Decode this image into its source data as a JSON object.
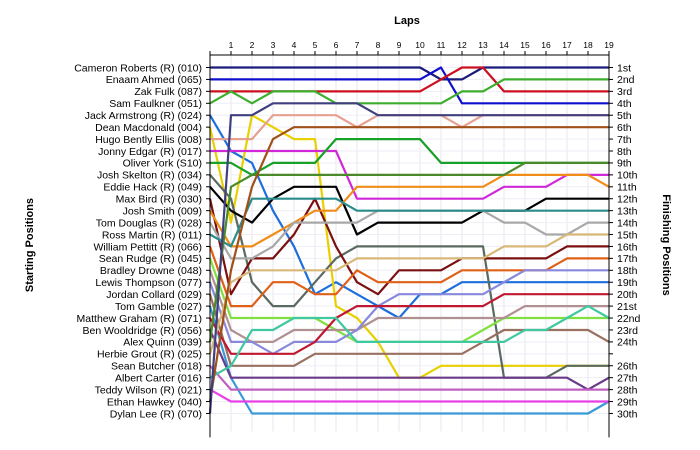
{
  "chart_data": {
    "type": "line",
    "title": "Laps",
    "xlabel_left": "Starting Positions",
    "xlabel_right": "Finishing Positions",
    "laps": [
      1,
      2,
      3,
      4,
      5,
      6,
      7,
      8,
      9,
      10,
      11,
      12,
      13,
      14,
      15,
      16,
      17,
      18,
      19
    ],
    "start_labels": [
      "Cameron Roberts (R) (010)",
      "Enaam Ahmed (065)",
      "Zak Fulk (087)",
      "Sam Faulkner (051)",
      "Jack Armstrong (R) (024)",
      "Dean Macdonald (004)",
      "Hugo Bently Ellis (008)",
      "Jonny Edgar (R) (017)",
      "Oliver York (S10)",
      "Josh Skelton (R) (034)",
      "Eddie Hack (R) (049)",
      "Max Bird   (R) (030)",
      "Josh Smith (009)",
      "Tom Douglas   (R) (028)",
      "Ross Martin (R) (011)",
      "William Pettitt (R) (066)",
      "Sean Rudge (R) (045)",
      "Bradley Drowne (048)",
      "Lewis Thompson (077)",
      "Jordan Collard (029)",
      "Tom Gamble (027)",
      "Matthew Graham (R) (071)",
      "Ben Wooldridge (R) (056)",
      "Alex Quinn (039)",
      "Herbie Grout (R) (025)",
      "Sean Butcher (018)",
      "Albert Carter (016)",
      "Teddy Wilson (R) (021)",
      "Ethan Hawkey (040)",
      "Dylan Lee (R) (070)"
    ],
    "finish_labels": [
      "1st",
      "2nd",
      "3rd",
      "4th",
      "5th",
      "6th",
      "7th",
      "8th",
      "9th",
      "10th",
      "11th",
      "12th",
      "13th",
      "14th",
      "15th",
      "16th",
      "17th",
      "18th",
      "19th",
      "20th",
      "21st",
      "22nd",
      "23rd",
      "24th",
      "",
      "26th",
      "27th",
      "28th",
      "29th",
      "30th"
    ],
    "series": [
      {
        "color": "#1a1a7a",
        "values": [
          1,
          1,
          1,
          1,
          1,
          1,
          1,
          1,
          1,
          1,
          1,
          2,
          2,
          1,
          1,
          1,
          1,
          1,
          1,
          1
        ]
      },
      {
        "color": "#1010cc",
        "values": [
          2,
          2,
          2,
          2,
          2,
          2,
          2,
          2,
          2,
          2,
          2,
          1,
          4,
          4,
          4,
          4,
          4,
          4,
          4,
          4
        ]
      },
      {
        "color": "#cc1020",
        "values": [
          3,
          3,
          3,
          3,
          3,
          3,
          3,
          3,
          3,
          3,
          3,
          2,
          1,
          1,
          3,
          3,
          3,
          3,
          3,
          3
        ]
      },
      {
        "color": "#3cae2c",
        "values": [
          4,
          3,
          4,
          3,
          3,
          3,
          4,
          4,
          4,
          4,
          4,
          4,
          3,
          3,
          2,
          2,
          2,
          2,
          2,
          2
        ]
      },
      {
        "color": "#1e6edc",
        "values": [
          5,
          8,
          9,
          13,
          16,
          20,
          19,
          20,
          21,
          22,
          20,
          20,
          19,
          19,
          19,
          19,
          19,
          19,
          19,
          19
        ]
      },
      {
        "color": "#e8d000",
        "values": [
          6,
          14,
          5,
          6,
          7,
          7,
          21,
          22,
          24,
          27,
          27,
          26,
          26,
          26,
          26,
          26,
          26,
          26,
          26,
          26
        ]
      },
      {
        "color": "#e7a090",
        "values": [
          7,
          7,
          7,
          5,
          5,
          5,
          5,
          6,
          5,
          5,
          5,
          5,
          6,
          5,
          5,
          5,
          5,
          5,
          5,
          5
        ]
      },
      {
        "color": "#d028d8",
        "values": [
          8,
          8,
          8,
          8,
          8,
          8,
          8,
          12,
          12,
          12,
          12,
          12,
          12,
          12,
          11,
          11,
          11,
          10,
          10,
          10
        ]
      },
      {
        "color": "#18a028",
        "values": [
          9,
          9,
          10,
          9,
          9,
          9,
          7,
          7,
          7,
          7,
          7,
          9,
          9,
          9,
          9,
          9,
          9,
          9,
          9,
          9
        ]
      },
      {
        "color": "#5a6a60",
        "values": [
          10,
          12,
          19,
          21,
          21,
          19,
          17,
          16,
          16,
          16,
          16,
          16,
          16,
          16,
          27,
          27,
          27,
          26,
          26,
          26
        ]
      },
      {
        "color": "#000000",
        "values": [
          11,
          13,
          14,
          12,
          11,
          11,
          11,
          15,
          14,
          14,
          14,
          14,
          14,
          13,
          13,
          13,
          12,
          12,
          12,
          12
        ]
      },
      {
        "color": "#7a1010",
        "values": [
          12,
          20,
          17,
          17,
          15,
          12,
          16,
          19,
          20,
          18,
          18,
          18,
          17,
          17,
          17,
          17,
          17,
          16,
          16,
          16
        ]
      },
      {
        "color": "#f08c18",
        "values": [
          13,
          16,
          16,
          15,
          14,
          13,
          13,
          11,
          11,
          11,
          11,
          11,
          11,
          11,
          10,
          10,
          10,
          10,
          10,
          11
        ]
      },
      {
        "color": "#a8a8a8",
        "values": [
          14,
          17,
          17,
          16,
          14,
          14,
          14,
          14,
          13,
          13,
          13,
          13,
          13,
          13,
          14,
          14,
          15,
          15,
          14,
          14
        ]
      },
      {
        "color": "#2a8c8c",
        "values": [
          15,
          16,
          12,
          12,
          12,
          12,
          12,
          13,
          13,
          13,
          13,
          13,
          13,
          13,
          13,
          13,
          13,
          13,
          13,
          13
        ]
      },
      {
        "color": "#e06018",
        "values": [
          16,
          21,
          21,
          19,
          19,
          20,
          20,
          18,
          19,
          19,
          19,
          19,
          18,
          18,
          18,
          18,
          18,
          17,
          17,
          17
        ]
      },
      {
        "color": "#80e040",
        "values": [
          17,
          22,
          22,
          22,
          22,
          22,
          23,
          24,
          24,
          24,
          24,
          24,
          24,
          23,
          22,
          22,
          22,
          22,
          22,
          22
        ]
      },
      {
        "color": "#b09090",
        "values": [
          18,
          23,
          24,
          24,
          23,
          23,
          23,
          23,
          22,
          22,
          22,
          22,
          22,
          22,
          22,
          21,
          21,
          21,
          21,
          21
        ]
      },
      {
        "color": "#8888dd",
        "values": [
          19,
          24,
          24,
          25,
          24,
          24,
          24,
          23,
          21,
          20,
          20,
          20,
          20,
          20,
          19,
          18,
          18,
          18,
          18,
          18
        ]
      },
      {
        "color": "#9a7060",
        "values": [
          20,
          26,
          26,
          26,
          26,
          25,
          25,
          25,
          25,
          25,
          25,
          25,
          25,
          24,
          23,
          23,
          23,
          23,
          23,
          24
        ]
      },
      {
        "color": "#3a9ad8",
        "values": [
          21,
          27,
          30,
          30,
          30,
          30,
          30,
          30,
          30,
          30,
          30,
          30,
          30,
          30,
          30,
          30,
          30,
          30,
          30,
          29
        ]
      },
      {
        "color": "#c01830",
        "values": [
          22,
          25,
          25,
          25,
          25,
          24,
          22,
          21,
          21,
          21,
          21,
          21,
          21,
          21,
          20,
          20,
          20,
          20,
          20,
          20
        ]
      },
      {
        "color": "#6a3a8a",
        "values": [
          23,
          27,
          27,
          27,
          27,
          27,
          27,
          27,
          27,
          27,
          27,
          27,
          27,
          27,
          27,
          27,
          27,
          27,
          28,
          27
        ]
      },
      {
        "color": "#4a8a2a",
        "values": [
          24,
          11,
          10,
          10,
          10,
          10,
          10,
          10,
          10,
          10,
          10,
          10,
          10,
          10,
          10,
          9,
          9,
          9,
          9,
          9
        ]
      },
      {
        "color": "#d8b878",
        "values": [
          25,
          19,
          18,
          18,
          18,
          18,
          18,
          17,
          17,
          17,
          17,
          17,
          17,
          17,
          16,
          16,
          16,
          15,
          15,
          15
        ]
      },
      {
        "color": "#c060c0",
        "values": [
          26,
          28,
          28,
          28,
          28,
          28,
          28,
          28,
          28,
          28,
          28,
          28,
          28,
          28,
          28,
          28,
          28,
          28,
          28,
          28
        ]
      },
      {
        "color": "#e840e8",
        "values": [
          28,
          29,
          29,
          29,
          29,
          29,
          29,
          29,
          29,
          29,
          29,
          29,
          29,
          29,
          29,
          29,
          29,
          29,
          29,
          29
        ]
      },
      {
        "color": "#40c8a0",
        "values": [
          27,
          26,
          23,
          23,
          22,
          22,
          22,
          24,
          24,
          24,
          24,
          24,
          24,
          24,
          24,
          23,
          23,
          22,
          21,
          22
        ]
      },
      {
        "color": "#a05018",
        "values": [
          29,
          18,
          11,
          7,
          6,
          6,
          6,
          6,
          6,
          6,
          6,
          6,
          6,
          6,
          6,
          6,
          6,
          6,
          6,
          6
        ]
      },
      {
        "color": "#404080",
        "values": [
          30,
          5,
          5,
          4,
          4,
          4,
          4,
          4,
          5,
          5,
          5,
          5,
          5,
          5,
          5,
          5,
          5,
          5,
          5,
          5
        ]
      }
    ]
  }
}
